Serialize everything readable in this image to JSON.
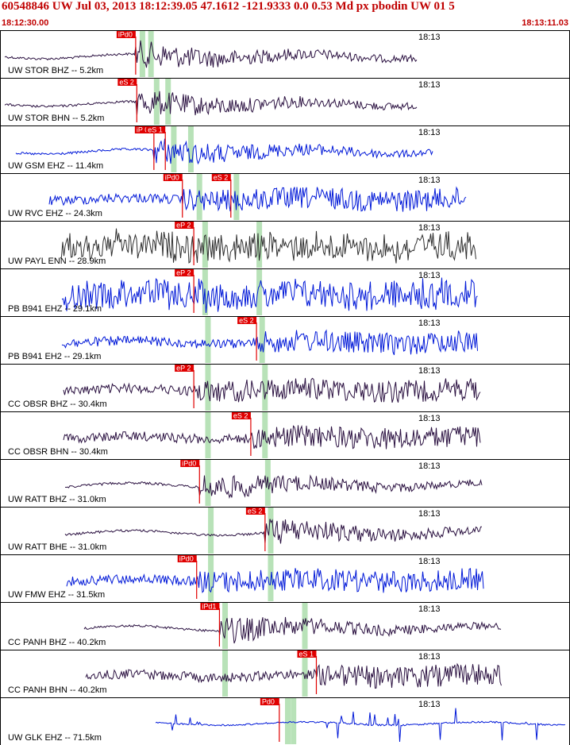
{
  "header": {
    "title": "60548846 UW Jul 03, 2013 18:12:39.05    47.1612 -121.9333  0.0 0.53 Md px pbodin UW 01    5",
    "start_time": "18:12:30.00",
    "end_time": "18:13:11.03"
  },
  "minute_mark": "18:13",
  "colors": {
    "header_text": "#c00000",
    "pick": "#e00000",
    "green_band": "#b8e2b8",
    "trace_dark": "#2a1040",
    "trace_blue": "#0018d8",
    "trace_gray": "#303030"
  },
  "panels": [
    {
      "label": "UW STOR BHZ -- 5.2km",
      "color": "dark",
      "picks": [
        {
          "text": "iPd0",
          "t": 0.238
        }
      ],
      "amp": "low"
    },
    {
      "label": "UW STOR BHN -- 5.2km",
      "color": "dark",
      "picks": [
        {
          "text": "eS 2",
          "t": 0.24
        }
      ],
      "amp": "low"
    },
    {
      "label": "UW GSM EHZ -- 11.4km",
      "color": "blue",
      "picks": [
        {
          "text": "iP 0",
          "t": 0.27
        },
        {
          "text": "eS 1",
          "t": 0.29
        }
      ],
      "amp": "low"
    },
    {
      "label": "UW RVC EHZ -- 24.3km",
      "color": "blue",
      "picks": [
        {
          "text": "iPd0",
          "t": 0.32
        },
        {
          "text": "eS 2",
          "t": 0.405
        }
      ],
      "amp": "med"
    },
    {
      "label": "UW PAYL ENN -- 28.9km",
      "color": "gray",
      "picks": [
        {
          "text": "eP 2",
          "t": 0.34
        }
      ],
      "amp": "high"
    },
    {
      "label": "PB B941 EHZ -- 29.1km",
      "color": "blue",
      "picks": [
        {
          "text": "eP 2",
          "t": 0.34
        }
      ],
      "amp": "high"
    },
    {
      "label": "PB B941 EH2 -- 29.1km",
      "color": "blue",
      "picks": [
        {
          "text": "eS 2",
          "t": 0.45
        }
      ],
      "amp": "med"
    },
    {
      "label": "CC OBSR BHZ -- 30.4km",
      "color": "dark",
      "picks": [
        {
          "text": "eP 2",
          "t": 0.34
        }
      ],
      "amp": "med"
    },
    {
      "label": "CC OBSR BHN -- 30.4km",
      "color": "dark",
      "picks": [
        {
          "text": "eS 2",
          "t": 0.44
        }
      ],
      "amp": "med"
    },
    {
      "label": "UW RATT BHZ -- 31.0km",
      "color": "dark",
      "picks": [
        {
          "text": "iPd0",
          "t": 0.35
        }
      ],
      "amp": "low"
    },
    {
      "label": "UW RATT BHE -- 31.0km",
      "color": "dark",
      "picks": [
        {
          "text": "eS 2",
          "t": 0.465
        }
      ],
      "amp": "low"
    },
    {
      "label": "UW FMW EHZ -- 31.5km",
      "color": "blue",
      "picks": [
        {
          "text": "iPd0",
          "t": 0.345
        }
      ],
      "amp": "med"
    },
    {
      "label": "CC PANH BHZ -- 40.2km",
      "color": "dark",
      "picks": [
        {
          "text": "iPd1",
          "t": 0.385
        }
      ],
      "amp": "low"
    },
    {
      "label": "CC PANH BHN -- 40.2km",
      "color": "dark",
      "picks": [
        {
          "text": "eS 1",
          "t": 0.555
        }
      ],
      "amp": "med"
    },
    {
      "label": "UW GLK EHZ -- 71.5km",
      "color": "blue",
      "picks": [
        {
          "text": "Pd0",
          "t": 0.49
        }
      ],
      "amp": "spike"
    }
  ]
}
